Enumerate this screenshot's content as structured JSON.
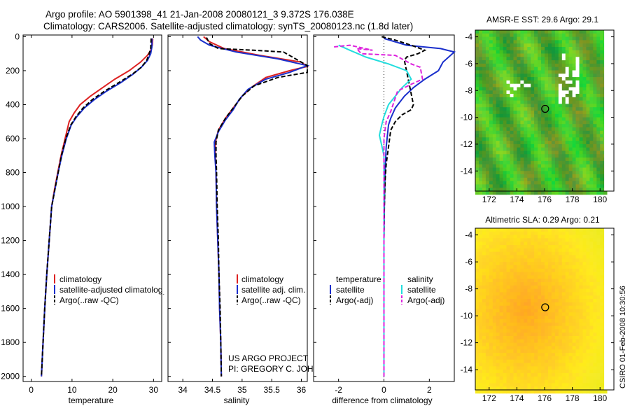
{
  "title_line1": "Argo profile: AO 5901398_41 21-Jan-2008 20080121_3 9.372S 176.038E",
  "title_line2": "Climatology: CARS2006. Satellite-adjusted climatology: synTS_20080123.nc (1.8d later)",
  "credit_line1": "US ARGO PROJECT",
  "credit_line2": "PI: GREGORY C. JOHNSON",
  "side_stamp": "CSIRO 01-Feb-2008 10:30:56",
  "colors": {
    "climatology": "#dd2222",
    "satellite": "#1a2fcc",
    "argo": "#000000",
    "sat_salt": "#22dddd",
    "argo_salt": "#dd22dd"
  },
  "chart_data": [
    {
      "id": "temperature",
      "type": "line",
      "xlabel": "temperature",
      "xlim": [
        -2,
        32
      ],
      "xticks": [
        0,
        10,
        20,
        30
      ],
      "ylim": [
        2030,
        -10
      ],
      "yticks": [
        0,
        200,
        400,
        600,
        800,
        1000,
        1200,
        1400,
        1600,
        1800,
        2000
      ],
      "legend": [
        "climatology",
        "satellite-adjusted climatology",
        "Argo(..raw -QC)"
      ],
      "series": [
        {
          "name": "climatology",
          "color": "#dd2222",
          "dash": false,
          "points": [
            [
              29.8,
              10
            ],
            [
              29.7,
              50
            ],
            [
              29.3,
              80
            ],
            [
              28.5,
              110
            ],
            [
              26.8,
              150
            ],
            [
              24.0,
              200
            ],
            [
              20.5,
              250
            ],
            [
              17.5,
              300
            ],
            [
              14.5,
              350
            ],
            [
              12.0,
              400
            ],
            [
              10.5,
              450
            ],
            [
              9.3,
              500
            ],
            [
              8.3,
              600
            ],
            [
              7.3,
              700
            ],
            [
              6.5,
              800
            ],
            [
              5.7,
              900
            ],
            [
              5.0,
              1000
            ],
            [
              4.4,
              1200
            ],
            [
              3.8,
              1400
            ],
            [
              3.3,
              1600
            ],
            [
              2.9,
              1800
            ],
            [
              2.5,
              2000
            ]
          ]
        },
        {
          "name": "satellite-adjusted climatology",
          "color": "#1a2fcc",
          "dash": false,
          "points": [
            [
              29.6,
              10
            ],
            [
              29.6,
              60
            ],
            [
              29.3,
              100
            ],
            [
              28.5,
              140
            ],
            [
              27.0,
              180
            ],
            [
              25.0,
              220
            ],
            [
              22.0,
              270
            ],
            [
              18.5,
              320
            ],
            [
              15.5,
              370
            ],
            [
              13.0,
              420
            ],
            [
              11.2,
              470
            ],
            [
              9.8,
              520
            ],
            [
              8.6,
              600
            ],
            [
              7.5,
              700
            ],
            [
              6.6,
              800
            ],
            [
              5.8,
              900
            ],
            [
              5.0,
              1000
            ],
            [
              4.4,
              1200
            ],
            [
              3.8,
              1400
            ],
            [
              3.3,
              1600
            ],
            [
              2.9,
              1800
            ],
            [
              2.5,
              2000
            ]
          ]
        },
        {
          "name": "Argo(..raw -QC)",
          "color": "#000000",
          "dash": true,
          "points": [
            [
              29.4,
              10
            ],
            [
              29.3,
              70
            ],
            [
              28.8,
              110
            ],
            [
              28.3,
              140
            ],
            [
              27.0,
              180
            ],
            [
              24.8,
              220
            ],
            [
              21.5,
              270
            ],
            [
              18.0,
              320
            ],
            [
              15.0,
              370
            ],
            [
              12.7,
              420
            ],
            [
              11.0,
              470
            ],
            [
              9.7,
              520
            ],
            [
              8.5,
              600
            ],
            [
              7.4,
              700
            ],
            [
              6.6,
              800
            ],
            [
              5.8,
              900
            ],
            [
              5.0,
              1000
            ],
            [
              4.4,
              1200
            ],
            [
              3.8,
              1400
            ],
            [
              3.3,
              1600
            ],
            [
              2.9,
              1800
            ],
            [
              2.5,
              2000
            ]
          ]
        }
      ]
    },
    {
      "id": "salinity",
      "type": "line",
      "xlabel": "salinity",
      "xlim": [
        33.75,
        36.1
      ],
      "xticks": [
        34,
        34.5,
        35,
        35.5,
        36
      ],
      "xticklabels": [
        "34",
        "34.5",
        "35",
        "35.5",
        "36"
      ],
      "ylim": [
        2030,
        -10
      ],
      "legend": [
        "climatology",
        "satellite adj. clim.",
        "Argo(..raw -QC)"
      ],
      "series": [
        {
          "name": "climatology",
          "color": "#dd2222",
          "dash": false,
          "points": [
            [
              34.35,
              0
            ],
            [
              34.45,
              30
            ],
            [
              34.7,
              70
            ],
            [
              35.3,
              110
            ],
            [
              36.0,
              150
            ],
            [
              36.1,
              175
            ],
            [
              35.8,
              200
            ],
            [
              35.4,
              240
            ],
            [
              35.15,
              300
            ],
            [
              35.0,
              350
            ],
            [
              34.85,
              420
            ],
            [
              34.72,
              480
            ],
            [
              34.6,
              550
            ],
            [
              34.55,
              620
            ],
            [
              34.55,
              700
            ],
            [
              34.56,
              800
            ],
            [
              34.57,
              1000
            ],
            [
              34.59,
              1200
            ],
            [
              34.61,
              1400
            ],
            [
              34.62,
              1600
            ],
            [
              34.64,
              1800
            ],
            [
              34.65,
              2000
            ]
          ]
        },
        {
          "name": "satellite adj. clim.",
          "color": "#1a2fcc",
          "dash": false,
          "points": [
            [
              34.25,
              0
            ],
            [
              34.3,
              20
            ],
            [
              34.45,
              50
            ],
            [
              34.9,
              90
            ],
            [
              35.6,
              130
            ],
            [
              36.1,
              170
            ],
            [
              35.8,
              210
            ],
            [
              35.4,
              250
            ],
            [
              35.1,
              310
            ],
            [
              34.95,
              370
            ],
            [
              34.85,
              430
            ],
            [
              34.72,
              490
            ],
            [
              34.6,
              560
            ],
            [
              34.53,
              620
            ],
            [
              34.54,
              700
            ],
            [
              34.56,
              800
            ],
            [
              34.57,
              1000
            ],
            [
              34.59,
              1200
            ],
            [
              34.61,
              1400
            ],
            [
              34.62,
              1600
            ],
            [
              34.64,
              1800
            ],
            [
              34.65,
              2000
            ]
          ]
        },
        {
          "name": "Argo(..raw -QC)",
          "color": "#000000",
          "dash": true,
          "points": [
            [
              34.4,
              5
            ],
            [
              34.45,
              40
            ],
            [
              34.6,
              70
            ],
            [
              35.2,
              80
            ],
            [
              35.7,
              90
            ],
            [
              36.1,
              170
            ],
            [
              36.1,
              210
            ],
            [
              35.6,
              240
            ],
            [
              35.2,
              290
            ],
            [
              35.0,
              350
            ],
            [
              34.85,
              420
            ],
            [
              34.72,
              480
            ],
            [
              34.6,
              550
            ],
            [
              34.56,
              620
            ],
            [
              34.56,
              700
            ],
            [
              34.57,
              800
            ],
            [
              34.58,
              1000
            ],
            [
              34.6,
              1200
            ],
            [
              34.61,
              1400
            ],
            [
              34.63,
              1600
            ],
            [
              34.64,
              1800
            ],
            [
              34.65,
              2000
            ]
          ]
        }
      ]
    },
    {
      "id": "difference",
      "type": "line",
      "xlabel": "difference from climatology",
      "xlim": [
        -3.1,
        3.1
      ],
      "xticks": [
        -2,
        0,
        2
      ],
      "ylim": [
        2030,
        -10
      ],
      "legend_temperature_title": "temperature",
      "legend_salinity_title": "salinity",
      "legend_temperature": [
        "satellite",
        "Argo(-adj)"
      ],
      "legend_salinity": [
        "satellite",
        "Argo(-adj)"
      ],
      "series": [
        {
          "name": "temperature satellite",
          "color": "#1a2fcc",
          "dash": false,
          "points": [
            [
              0,
              10
            ],
            [
              1.0,
              50
            ],
            [
              2.5,
              70
            ],
            [
              3.1,
              90
            ],
            [
              2.6,
              150
            ],
            [
              2.4,
              200
            ],
            [
              1.8,
              250
            ],
            [
              1.3,
              300
            ],
            [
              0.9,
              350
            ],
            [
              0.5,
              420
            ],
            [
              0.3,
              480
            ],
            [
              0.2,
              520
            ],
            [
              0.1,
              650
            ],
            [
              0.05,
              800
            ],
            [
              0.02,
              1000
            ],
            [
              0,
              1200
            ],
            [
              0,
              1400
            ],
            [
              0,
              1600
            ],
            [
              0,
              2000
            ]
          ]
        },
        {
          "name": "temperature Argo(-adj)",
          "color": "#000000",
          "dash": true,
          "points": [
            [
              -0.1,
              0
            ],
            [
              0.5,
              20
            ],
            [
              1.2,
              50
            ],
            [
              1.8,
              80
            ],
            [
              1.5,
              100
            ],
            [
              1.0,
              120
            ],
            [
              0.9,
              140
            ],
            [
              1.3,
              400
            ],
            [
              1.2,
              430
            ],
            [
              0.8,
              460
            ],
            [
              0.5,
              500
            ],
            [
              0.3,
              550
            ],
            [
              0.2,
              650
            ],
            [
              0.1,
              750
            ],
            [
              0.05,
              850
            ],
            [
              0.02,
              1000
            ],
            [
              0,
              1200
            ],
            [
              0,
              1500
            ],
            [
              0,
              1800
            ],
            [
              0,
              2000
            ]
          ]
        },
        {
          "name": "salinity satellite",
          "color": "#22dddd",
          "dash": false,
          "points": [
            [
              -2.0,
              50
            ],
            [
              -1.5,
              80
            ],
            [
              -0.8,
              120
            ],
            [
              0.2,
              160
            ],
            [
              1.0,
              200
            ],
            [
              1.2,
              250
            ],
            [
              0.8,
              300
            ],
            [
              0.5,
              350
            ],
            [
              0.2,
              400
            ],
            [
              0,
              470
            ],
            [
              -0.1,
              520
            ],
            [
              -0.2,
              580
            ],
            [
              -0.1,
              640
            ],
            [
              0,
              700
            ],
            [
              0,
              900
            ],
            [
              0,
              1200
            ],
            [
              0,
              1600
            ],
            [
              0,
              2000
            ]
          ]
        },
        {
          "name": "salinity Argo(-adj)",
          "color": "#dd22dd",
          "dash": true,
          "points": [
            [
              -2.2,
              60
            ],
            [
              -1.5,
              50
            ],
            [
              -0.5,
              80
            ],
            [
              -1.2,
              70
            ],
            [
              -1.0,
              100
            ],
            [
              0.5,
              110
            ],
            [
              1.2,
              160
            ],
            [
              1.6,
              180
            ],
            [
              1.7,
              250
            ],
            [
              1.2,
              280
            ],
            [
              0.9,
              300
            ],
            [
              0.6,
              320
            ],
            [
              0.3,
              440
            ],
            [
              0.1,
              500
            ],
            [
              0,
              600
            ],
            [
              0,
              800
            ],
            [
              0,
              1200
            ],
            [
              0,
              2000
            ]
          ]
        }
      ]
    },
    {
      "id": "sst_map",
      "type": "heatmap",
      "title": "AMSR-E SST: 29.6 Argo: 29.1",
      "xlim": [
        171,
        181
      ],
      "ylim": [
        -15.5,
        -3.5
      ],
      "xticks": [
        172,
        174,
        176,
        178,
        180
      ],
      "yticks": [
        -4,
        -6,
        -8,
        -10,
        -12,
        -14
      ],
      "marker": {
        "lon": 176.038,
        "lat": -9.372
      },
      "sst": 29.6,
      "argo": 29.1
    },
    {
      "id": "sla_map",
      "type": "heatmap",
      "title": "Altimetric SLA: 0.29 Argo: 0.21",
      "xlim": [
        171,
        181
      ],
      "ylim": [
        -15.5,
        -3.5
      ],
      "xticks": [
        172,
        174,
        176,
        178,
        180
      ],
      "yticks": [
        -4,
        -6,
        -8,
        -10,
        -12,
        -14
      ],
      "marker": {
        "lon": 176.038,
        "lat": -9.372
      },
      "sla": 0.29,
      "argo": 0.21
    }
  ]
}
